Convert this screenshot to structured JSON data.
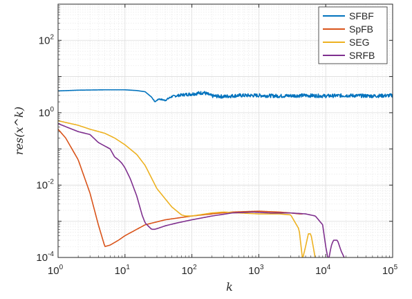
{
  "chart_data": {
    "type": "line",
    "title": "",
    "xlabel": "k",
    "ylabel": "res(x^k)",
    "xscale": "log",
    "yscale": "log",
    "xlim": [
      1,
      100000
    ],
    "ylim": [
      0.0001,
      1000
    ],
    "grid": true,
    "legend_position": "top-right",
    "x_ticks": [
      {
        "base": "10",
        "exp": "0"
      },
      {
        "base": "10",
        "exp": "1"
      },
      {
        "base": "10",
        "exp": "2"
      },
      {
        "base": "10",
        "exp": "3"
      },
      {
        "base": "10",
        "exp": "4"
      },
      {
        "base": "10",
        "exp": "5"
      }
    ],
    "y_ticks": [
      {
        "base": "10",
        "exp": "-4",
        "value": 0.0001
      },
      {
        "base": "10",
        "exp": "-2",
        "value": 0.01
      },
      {
        "base": "10",
        "exp": "0",
        "value": 1
      },
      {
        "base": "10",
        "exp": "2",
        "value": 100
      }
    ],
    "series": [
      {
        "name": "SFBF",
        "color": "#0072BD",
        "noise": 0.05,
        "x": [
          1,
          2,
          5,
          10,
          15,
          20,
          25,
          28,
          32,
          40,
          50,
          70,
          100,
          150,
          200,
          300,
          500,
          1000,
          2000,
          5000,
          10000,
          20000,
          50000,
          100000
        ],
        "y": [
          4.0,
          4.2,
          4.3,
          4.3,
          4.1,
          3.8,
          2.7,
          2.0,
          2.4,
          2.2,
          2.8,
          3.1,
          3.3,
          3.6,
          2.9,
          2.8,
          3.0,
          3.0,
          2.9,
          3.0,
          2.9,
          3.0,
          2.9,
          3.0
        ]
      },
      {
        "name": "SpFB",
        "color": "#D95319",
        "noise": 0,
        "x": [
          1,
          1.3,
          2,
          3,
          4,
          5,
          6,
          8,
          10,
          15,
          20,
          40,
          100,
          200,
          400,
          1000,
          2000,
          3000,
          4000,
          4500
        ],
        "y": [
          0.35,
          0.2,
          0.05,
          0.006,
          0.0008,
          0.0002,
          0.00022,
          0.0003,
          0.0004,
          0.0006,
          0.0008,
          0.0011,
          0.0014,
          0.0016,
          0.0018,
          0.0019,
          0.0018,
          0.0017,
          0.0016,
          0.0016
        ]
      },
      {
        "name": "SEG",
        "color": "#EDB120",
        "noise": 0,
        "x": [
          1,
          2,
          3,
          5,
          7,
          10,
          15,
          20,
          30,
          50,
          70,
          80,
          100,
          200,
          300,
          500,
          1000,
          2000,
          3000,
          4000,
          4500,
          5000,
          5500,
          6000,
          6500,
          7000,
          7500
        ],
        "y": [
          0.6,
          0.45,
          0.35,
          0.27,
          0.2,
          0.13,
          0.07,
          0.035,
          0.008,
          0.0025,
          0.0015,
          0.0014,
          0.0014,
          0.0017,
          0.0018,
          0.0017,
          0.0016,
          0.0016,
          0.0015,
          0.0006,
          9e-05,
          0.0002,
          0.00045,
          0.00045,
          0.0002,
          9e-05,
          9e-05
        ]
      },
      {
        "name": "SRFB",
        "color": "#7E2F8E",
        "noise": 0,
        "x": [
          1,
          2,
          3,
          4,
          5,
          6,
          7,
          8,
          9,
          10,
          12,
          15,
          18,
          20,
          25,
          28,
          32,
          40,
          60,
          100,
          200,
          400,
          800,
          1500,
          3000,
          5000,
          7000,
          9000,
          10000,
          11000,
          12000,
          13000,
          15000,
          17000,
          20000
        ],
        "y": [
          0.5,
          0.3,
          0.25,
          0.15,
          0.12,
          0.1,
          0.06,
          0.05,
          0.04,
          0.03,
          0.015,
          0.005,
          0.0015,
          0.0009,
          0.0006,
          0.0006,
          0.00065,
          0.00075,
          0.0009,
          0.0011,
          0.0014,
          0.0017,
          0.0018,
          0.0017,
          0.0017,
          0.0016,
          0.0014,
          0.0008,
          0.0002,
          8e-05,
          0.0002,
          0.0003,
          0.0003,
          0.00015,
          8e-05
        ]
      }
    ]
  }
}
